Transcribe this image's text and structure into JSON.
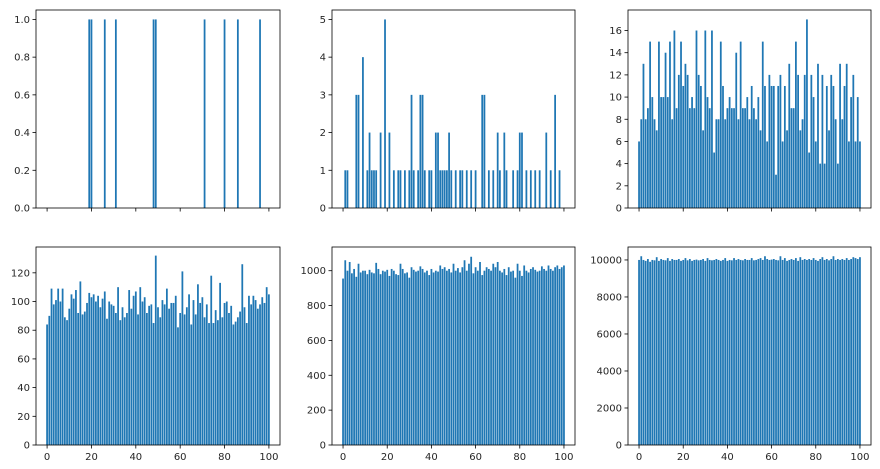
{
  "colors": {
    "bar": "#1f77b4",
    "axis": "#000000",
    "text": "#262626",
    "background": "#ffffff"
  },
  "chart_data": [
    {
      "type": "bar",
      "xlim": [
        -5,
        105
      ],
      "ylim": [
        0,
        1.05
      ],
      "yticks": [
        0,
        0.2,
        0.4,
        0.6,
        0.8,
        1.0
      ],
      "ytick_labels": [
        "0.0",
        "0.2",
        "0.4",
        "0.6",
        "0.8",
        "1.0"
      ],
      "xticks": [
        0,
        20,
        40,
        60,
        80,
        100
      ],
      "xtick_labels": [],
      "x": [
        19,
        20,
        26,
        31,
        48,
        49,
        71,
        80,
        86,
        96
      ],
      "values": [
        1,
        1,
        1,
        1,
        1,
        1,
        1,
        1,
        1,
        1
      ]
    },
    {
      "type": "bar",
      "xlim": [
        -5,
        105
      ],
      "ylim": [
        0,
        5.25
      ],
      "yticks": [
        0,
        1,
        2,
        3,
        4,
        5
      ],
      "ytick_labels": [
        "0",
        "1",
        "2",
        "3",
        "4",
        "5"
      ],
      "xticks": [
        0,
        20,
        40,
        60,
        80,
        100
      ],
      "xtick_labels": [],
      "x": [
        1,
        2,
        6,
        7,
        9,
        11,
        12,
        13,
        14,
        15,
        17,
        19,
        21,
        23,
        25,
        26,
        28,
        30,
        31,
        32,
        34,
        35,
        36,
        37,
        39,
        40,
        42,
        43,
        44,
        45,
        46,
        47,
        48,
        49,
        51,
        53,
        54,
        56,
        58,
        60,
        63,
        64,
        66,
        68,
        70,
        71,
        73,
        74,
        77,
        79,
        80,
        81,
        83,
        85,
        87,
        89,
        92,
        94,
        96,
        98
      ],
      "values": [
        1,
        1,
        3,
        3,
        4,
        1,
        2,
        1,
        1,
        1,
        2,
        5,
        2,
        1,
        1,
        1,
        1,
        1,
        3,
        1,
        1,
        3,
        3,
        1,
        1,
        1,
        2,
        2,
        1,
        1,
        1,
        1,
        2,
        1,
        1,
        1,
        1,
        1,
        1,
        1,
        3,
        3,
        1,
        1,
        2,
        1,
        2,
        1,
        1,
        1,
        2,
        2,
        1,
        1,
        1,
        1,
        2,
        1,
        3,
        1
      ]
    },
    {
      "type": "bar",
      "xlim": [
        -5,
        105
      ],
      "ylim": [
        0,
        17.85
      ],
      "yticks": [
        0,
        2,
        4,
        6,
        8,
        10,
        12,
        14,
        16
      ],
      "ytick_labels": [
        "0",
        "2",
        "4",
        "6",
        "8",
        "10",
        "12",
        "14",
        "16"
      ],
      "xticks": [
        0,
        20,
        40,
        60,
        80,
        100
      ],
      "xtick_labels": [],
      "x": [
        0,
        1,
        2,
        3,
        4,
        5,
        6,
        7,
        8,
        9,
        10,
        11,
        12,
        13,
        14,
        15,
        16,
        17,
        18,
        19,
        20,
        21,
        22,
        23,
        24,
        25,
        26,
        27,
        28,
        29,
        30,
        31,
        32,
        33,
        34,
        35,
        36,
        37,
        38,
        39,
        40,
        41,
        42,
        43,
        44,
        45,
        46,
        47,
        48,
        49,
        50,
        51,
        52,
        53,
        54,
        55,
        56,
        57,
        58,
        59,
        60,
        61,
        62,
        63,
        64,
        65,
        66,
        67,
        68,
        69,
        70,
        71,
        72,
        73,
        74,
        75,
        76,
        77,
        78,
        79,
        80,
        81,
        82,
        83,
        84,
        85,
        86,
        87,
        88,
        89,
        90,
        91,
        92,
        93,
        94,
        95,
        96,
        97,
        98,
        99,
        100
      ],
      "values": [
        6,
        8,
        13,
        8,
        9,
        15,
        10,
        8,
        7,
        15,
        10,
        10,
        14,
        10,
        15,
        8,
        16,
        9,
        12,
        15,
        11,
        13,
        12,
        9,
        10,
        9,
        16,
        12,
        11,
        7,
        16,
        10,
        9,
        16,
        5,
        8,
        8,
        15,
        11,
        8,
        9,
        10,
        9,
        9,
        14,
        8,
        15,
        9,
        9,
        10,
        8,
        11,
        9,
        8,
        10,
        7,
        15,
        11,
        6,
        12,
        11,
        11,
        3,
        11,
        12,
        6,
        11,
        7,
        13,
        9,
        9,
        15,
        12,
        7,
        8,
        12,
        17,
        5,
        12,
        10,
        6,
        13,
        4,
        12,
        4,
        11,
        7,
        12,
        11,
        8,
        4,
        13,
        8,
        11,
        13,
        6,
        10,
        12,
        6,
        10,
        6
      ]
    },
    {
      "type": "bar",
      "xlim": [
        -5,
        105
      ],
      "ylim": [
        0,
        138
      ],
      "yticks": [
        0,
        20,
        40,
        60,
        80,
        100,
        120
      ],
      "ytick_labels": [
        "0",
        "20",
        "40",
        "60",
        "80",
        "100",
        "120"
      ],
      "xticks": [
        0,
        20,
        40,
        60,
        80,
        100
      ],
      "xtick_labels": [
        "0",
        "20",
        "40",
        "60",
        "80",
        "100"
      ],
      "x": [
        0,
        1,
        2,
        3,
        4,
        5,
        6,
        7,
        8,
        9,
        10,
        11,
        12,
        13,
        14,
        15,
        16,
        17,
        18,
        19,
        20,
        21,
        22,
        23,
        24,
        25,
        26,
        27,
        28,
        29,
        30,
        31,
        32,
        33,
        34,
        35,
        36,
        37,
        38,
        39,
        40,
        41,
        42,
        43,
        44,
        45,
        46,
        47,
        48,
        49,
        50,
        51,
        52,
        53,
        54,
        55,
        56,
        57,
        58,
        59,
        60,
        61,
        62,
        63,
        64,
        65,
        66,
        67,
        68,
        69,
        70,
        71,
        72,
        73,
        74,
        75,
        76,
        77,
        78,
        79,
        80,
        81,
        82,
        83,
        84,
        85,
        86,
        87,
        88,
        89,
        90,
        91,
        92,
        93,
        94,
        95,
        96,
        97,
        98,
        99,
        100
      ],
      "values": [
        84,
        90,
        109,
        98,
        101,
        109,
        100,
        109,
        89,
        87,
        95,
        105,
        102,
        108,
        92,
        114,
        91,
        93,
        99,
        106,
        103,
        105,
        100,
        104,
        96,
        102,
        107,
        88,
        100,
        98,
        97,
        92,
        110,
        87,
        96,
        89,
        92,
        108,
        95,
        104,
        107,
        91,
        110,
        100,
        103,
        92,
        97,
        98,
        85,
        132,
        96,
        89,
        101,
        98,
        109,
        95,
        99,
        99,
        104,
        82,
        92,
        121,
        91,
        96,
        105,
        84,
        101,
        91,
        112,
        99,
        103,
        89,
        98,
        85,
        118,
        85,
        94,
        87,
        113,
        89,
        99,
        100,
        92,
        97,
        84,
        86,
        89,
        93,
        126,
        96,
        85,
        104,
        98,
        104,
        101,
        95,
        98,
        103,
        99,
        110,
        105
      ]
    },
    {
      "type": "bar",
      "xlim": [
        -5,
        105
      ],
      "ylim": [
        0,
        1136
      ],
      "yticks": [
        0,
        200,
        400,
        600,
        800,
        1000
      ],
      "ytick_labels": [
        "0",
        "200",
        "400",
        "600",
        "800",
        "1000"
      ],
      "xticks": [
        0,
        20,
        40,
        60,
        80,
        100
      ],
      "xtick_labels": [
        "0",
        "20",
        "40",
        "60",
        "80",
        "100"
      ],
      "x": [
        0,
        1,
        2,
        3,
        4,
        5,
        6,
        7,
        8,
        9,
        10,
        11,
        12,
        13,
        14,
        15,
        16,
        17,
        18,
        19,
        20,
        21,
        22,
        23,
        24,
        25,
        26,
        27,
        28,
        29,
        30,
        31,
        32,
        33,
        34,
        35,
        36,
        37,
        38,
        39,
        40,
        41,
        42,
        43,
        44,
        45,
        46,
        47,
        48,
        49,
        50,
        51,
        52,
        53,
        54,
        55,
        56,
        57,
        58,
        59,
        60,
        61,
        62,
        63,
        64,
        65,
        66,
        67,
        68,
        69,
        70,
        71,
        72,
        73,
        74,
        75,
        76,
        77,
        78,
        79,
        80,
        81,
        82,
        83,
        84,
        85,
        86,
        87,
        88,
        89,
        90,
        91,
        92,
        93,
        94,
        95,
        96,
        97,
        98,
        99,
        100
      ],
      "values": [
        955,
        1060,
        1000,
        1050,
        985,
        1010,
        965,
        1040,
        990,
        1000,
        1000,
        980,
        1005,
        990,
        985,
        1045,
        1010,
        980,
        1000,
        995,
        1005,
        970,
        1010,
        1000,
        980,
        975,
        1040,
        1010,
        985,
        990,
        960,
        1020,
        1005,
        995,
        1000,
        1025,
        1010,
        990,
        1000,
        975,
        1010,
        990,
        1000,
        995,
        1030,
        1010,
        1020,
        1000,
        1010,
        990,
        1040,
        1000,
        1015,
        990,
        1020,
        1060,
        1000,
        1040,
        1080,
        985,
        1020,
        1000,
        1050,
        975,
        1000,
        1020,
        1010,
        1000,
        1040,
        1020,
        1050,
        1000,
        990,
        1010,
        975,
        1020,
        995,
        1000,
        960,
        1040,
        1000,
        970,
        1030,
        1000,
        990,
        1010,
        1020,
        1005,
        995,
        1000,
        1025,
        1010,
        1000,
        1030,
        1010,
        1000,
        1020,
        1030,
        1010,
        1020,
        1030
      ]
    },
    {
      "type": "bar",
      "xlim": [
        -5,
        105
      ],
      "ylim": [
        0,
        10700
      ],
      "yticks": [
        0,
        2000,
        4000,
        6000,
        8000,
        10000
      ],
      "ytick_labels": [
        "0",
        "2000",
        "4000",
        "6000",
        "8000",
        "10000"
      ],
      "xticks": [
        0,
        20,
        40,
        60,
        80,
        100
      ],
      "xtick_labels": [
        "0",
        "20",
        "40",
        "60",
        "80",
        "100"
      ],
      "x": [
        0,
        1,
        2,
        3,
        4,
        5,
        6,
        7,
        8,
        9,
        10,
        11,
        12,
        13,
        14,
        15,
        16,
        17,
        18,
        19,
        20,
        21,
        22,
        23,
        24,
        25,
        26,
        27,
        28,
        29,
        30,
        31,
        32,
        33,
        34,
        35,
        36,
        37,
        38,
        39,
        40,
        41,
        42,
        43,
        44,
        45,
        46,
        47,
        48,
        49,
        50,
        51,
        52,
        53,
        54,
        55,
        56,
        57,
        58,
        59,
        60,
        61,
        62,
        63,
        64,
        65,
        66,
        67,
        68,
        69,
        70,
        71,
        72,
        73,
        74,
        75,
        76,
        77,
        78,
        79,
        80,
        81,
        82,
        83,
        84,
        85,
        86,
        87,
        88,
        89,
        90,
        91,
        92,
        93,
        94,
        95,
        96,
        97,
        98,
        99,
        100
      ],
      "values": [
        10000,
        10200,
        10000,
        9950,
        10050,
        9900,
        10000,
        9980,
        10150,
        9950,
        10050,
        10000,
        9980,
        10100,
        9950,
        10050,
        10000,
        10000,
        10050,
        9950,
        10000,
        10100,
        9980,
        10050,
        9950,
        10000,
        10020,
        9980,
        10000,
        10050,
        9950,
        10100,
        10000,
        9980,
        10000,
        10050,
        10000,
        9950,
        10000,
        10100,
        9950,
        10000,
        9980,
        10100,
        10000,
        10050,
        10000,
        9980,
        10050,
        10000,
        10000,
        10100,
        9980,
        10000,
        10050,
        10100,
        10000,
        10200,
        10050,
        10000,
        10020,
        10050,
        10000,
        9980,
        10200,
        10000,
        10100,
        9950,
        10000,
        10050,
        10000,
        10100,
        9950,
        10150,
        10000,
        10050,
        10000,
        10050,
        10000,
        10100,
        10000,
        9950,
        10050,
        10150,
        10000,
        10050,
        9980,
        10050,
        10200,
        10000,
        10050,
        10000,
        10050,
        10000,
        10100,
        10000,
        10050,
        10150,
        10100,
        10050,
        10150
      ]
    }
  ]
}
